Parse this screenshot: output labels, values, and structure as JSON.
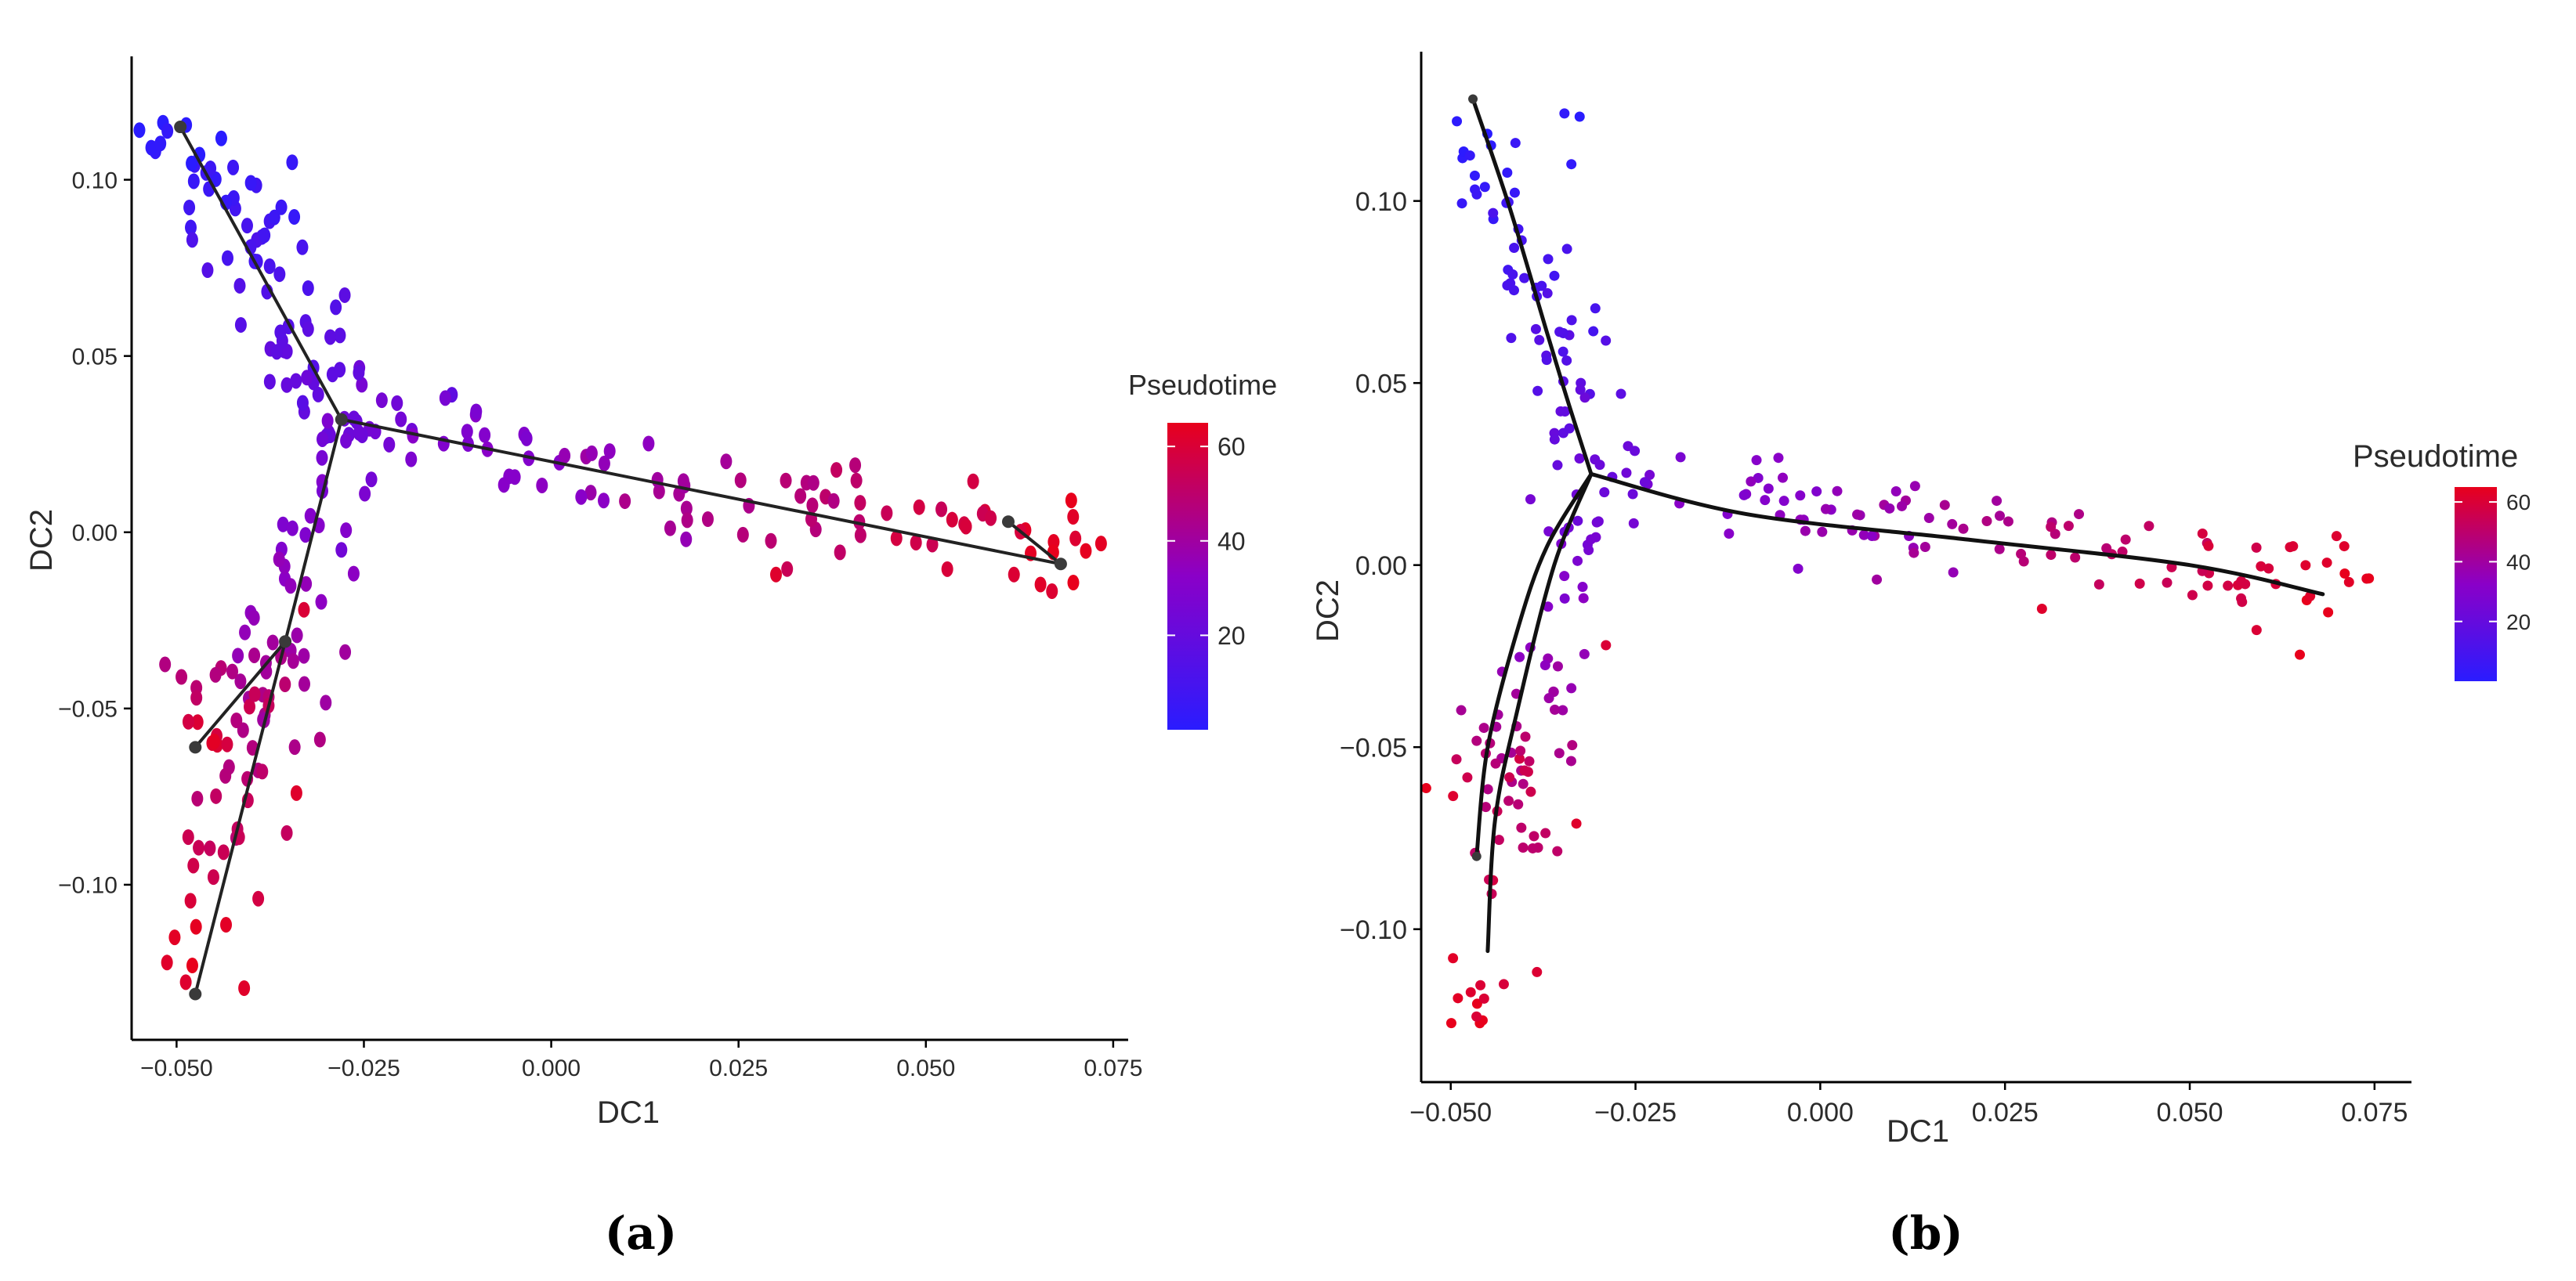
{
  "colors": {
    "low": "#2a1cff",
    "mid": "#8a00c8",
    "high": "#e8001c",
    "axis": "#000000",
    "tick_text": "#2b2b2b",
    "curve": "#222222",
    "node": "#3a3a3a"
  },
  "captions": [
    "(a)",
    "(b)"
  ],
  "chart_data": [
    {
      "type": "scatter",
      "panel": "a",
      "title": "",
      "xlabel": "DC1",
      "ylabel": "DC2",
      "xlim": [
        -0.056,
        0.077
      ],
      "ylim": [
        -0.144,
        0.135
      ],
      "xticks": [
        -0.05,
        -0.025,
        0.0,
        0.025,
        0.05,
        0.075
      ],
      "xtick_labels": [
        "−0.050",
        "−0.025",
        "0.000",
        "0.025",
        "0.050",
        "0.075"
      ],
      "yticks": [
        -0.1,
        -0.05,
        0.0,
        0.05,
        0.1
      ],
      "ytick_labels": [
        "−0.10",
        "−0.05",
        "0.00",
        "0.05",
        "0.10"
      ],
      "grid": false,
      "legend": {
        "title": "Pseudotime",
        "position": "right",
        "range": [
          0,
          65
        ],
        "ticks": [
          20,
          40,
          60
        ],
        "tick_labels": [
          "20",
          "40",
          "60"
        ]
      },
      "trajectory": {
        "style": "polyline",
        "nodes": [
          [
            -0.0495,
            0.115
          ],
          [
            -0.028,
            0.032
          ],
          [
            -0.0355,
            -0.031
          ],
          [
            -0.0475,
            -0.061
          ],
          [
            -0.0475,
            -0.131
          ],
          [
            0.068,
            -0.009
          ],
          [
            0.061,
            0.003
          ]
        ],
        "edges": [
          [
            [
              -0.0495,
              0.115
            ],
            [
              -0.028,
              0.032
            ]
          ],
          [
            [
              -0.028,
              0.032
            ],
            [
              0.068,
              -0.009
            ]
          ],
          [
            [
              0.061,
              0.003
            ],
            [
              0.068,
              -0.009
            ]
          ],
          [
            [
              -0.028,
              0.032
            ],
            [
              -0.0355,
              -0.031
            ]
          ],
          [
            [
              -0.0355,
              -0.031
            ],
            [
              -0.0475,
              -0.061
            ]
          ],
          [
            [
              -0.0355,
              -0.031
            ],
            [
              -0.0475,
              -0.131
            ]
          ]
        ]
      },
      "point_model": {
        "seed": 7,
        "note": "cells sampled along each branch of the trajectory; pseudotime increases away from the root at the top-left",
        "branches": [
          {
            "from": [
              -0.0495,
              0.118
            ],
            "to": [
              -0.028,
              0.033
            ],
            "pseudotime": [
              0,
              22
            ],
            "count": 75,
            "spread": 0.0042
          },
          {
            "from": [
              -0.028,
              0.033
            ],
            "to": [
              0.072,
              -0.009
            ],
            "pseudotime": [
              22,
              65
            ],
            "count": 95,
            "spread": 0.006
          },
          {
            "from": [
              -0.028,
              0.033
            ],
            "to": [
              -0.036,
              -0.03
            ],
            "pseudotime": [
              22,
              38
            ],
            "count": 30,
            "spread": 0.0035
          },
          {
            "from": [
              -0.036,
              -0.03
            ],
            "to": [
              -0.047,
              -0.129
            ],
            "pseudotime": [
              38,
              65
            ],
            "count": 45,
            "spread": 0.0035
          },
          {
            "from": [
              -0.036,
              -0.03
            ],
            "to": [
              -0.047,
              -0.06
            ],
            "pseudotime": [
              38,
              62
            ],
            "count": 25,
            "spread": 0.004
          }
        ],
        "extras": [
          {
            "x": -0.003,
            "y": 0.021,
            "t": 30
          },
          {
            "x": 0.004,
            "y": 0.01,
            "t": 32
          },
          {
            "x": 0.018,
            "y": -0.002,
            "t": 36
          },
          {
            "x": 0.035,
            "y": 0.014,
            "t": 45
          },
          {
            "x": 0.03,
            "y": -0.012,
            "t": 62
          },
          {
            "x": 0.007,
            "y": 0.009,
            "t": 33
          },
          {
            "x": -0.033,
            "y": -0.022,
            "t": 60
          },
          {
            "x": -0.034,
            "y": -0.074,
            "t": 62
          },
          {
            "x": -0.028,
            "y": -0.005,
            "t": 24
          },
          {
            "x": -0.024,
            "y": 0.015,
            "t": 25
          }
        ]
      }
    },
    {
      "type": "scatter",
      "panel": "b",
      "title": "",
      "xlabel": "DC1",
      "ylabel": "DC2",
      "xlim": [
        -0.054,
        0.08
      ],
      "ylim": [
        -0.142,
        0.141
      ],
      "xticks": [
        -0.05,
        -0.025,
        0.0,
        0.025,
        0.05,
        0.075
      ],
      "xtick_labels": [
        "−0.050",
        "−0.025",
        "0.000",
        "0.025",
        "0.050",
        "0.075"
      ],
      "yticks": [
        -0.1,
        -0.05,
        0.0,
        0.05,
        0.1
      ],
      "ytick_labels": [
        "−0.10",
        "−0.05",
        "0.00",
        "0.05",
        "0.10"
      ],
      "grid": false,
      "legend": {
        "title": "Pseudotime",
        "position": "right",
        "range": [
          0,
          65
        ],
        "ticks": [
          20,
          40,
          60
        ],
        "tick_labels": [
          "20",
          "40",
          "60"
        ]
      },
      "trajectory": {
        "style": "smooth",
        "curves": [
          [
            [
              -0.047,
              0.128
            ],
            [
              -0.042,
              0.098
            ],
            [
              -0.037,
              0.064
            ],
            [
              -0.034,
              0.044
            ],
            [
              -0.031,
              0.025
            ]
          ],
          [
            [
              -0.031,
              0.025
            ],
            [
              -0.01,
              0.014
            ],
            [
              0.02,
              0.007
            ],
            [
              0.05,
              0.0
            ],
            [
              0.068,
              -0.008
            ]
          ],
          [
            [
              -0.031,
              0.025
            ],
            [
              -0.036,
              0.0
            ],
            [
              -0.041,
              -0.04
            ],
            [
              -0.044,
              -0.07
            ],
            [
              -0.045,
              -0.106
            ]
          ],
          [
            [
              -0.031,
              0.025
            ],
            [
              -0.037,
              0.005
            ],
            [
              -0.041,
              -0.018
            ],
            [
              -0.045,
              -0.05
            ],
            [
              -0.0465,
              -0.08
            ]
          ]
        ],
        "end_nodes": [
          [
            -0.047,
            0.128
          ],
          [
            -0.0465,
            -0.08
          ]
        ]
      },
      "point_model": {
        "seed": 11,
        "note": "cells sampled along each branch of the trajectory; pseudotime increases away from the root at the top-left",
        "branches": [
          {
            "from": [
              -0.047,
              0.128
            ],
            "to": [
              -0.031,
              0.027
            ],
            "pseudotime": [
              0,
              22
            ],
            "count": 70,
            "spread": 0.0038
          },
          {
            "from": [
              -0.031,
              0.026
            ],
            "to": [
              0.073,
              -0.008
            ],
            "pseudotime": [
              22,
              65
            ],
            "count": 100,
            "spread": 0.0065
          },
          {
            "from": [
              -0.031,
              0.026
            ],
            "to": [
              -0.037,
              -0.03
            ],
            "pseudotime": [
              22,
              38
            ],
            "count": 30,
            "spread": 0.004
          },
          {
            "from": [
              -0.037,
              -0.03
            ],
            "to": [
              -0.046,
              -0.127
            ],
            "pseudotime": [
              38,
              65
            ],
            "count": 45,
            "spread": 0.0035
          },
          {
            "from": [
              -0.038,
              -0.035
            ],
            "to": [
              -0.047,
              -0.065
            ],
            "pseudotime": [
              38,
              62
            ],
            "count": 20,
            "spread": 0.004
          }
        ],
        "extras": [
          {
            "x": -0.007,
            "y": 0.021,
            "t": 30
          },
          {
            "x": 0.007,
            "y": 0.008,
            "t": 33
          },
          {
            "x": 0.018,
            "y": -0.002,
            "t": 36
          },
          {
            "x": 0.035,
            "y": 0.014,
            "t": 45
          },
          {
            "x": 0.03,
            "y": -0.012,
            "t": 62
          },
          {
            "x": -0.003,
            "y": -0.001,
            "t": 30
          },
          {
            "x": -0.033,
            "y": -0.071,
            "t": 62
          },
          {
            "x": -0.029,
            "y": -0.022,
            "t": 60
          },
          {
            "x": -0.03,
            "y": 0.012,
            "t": 24
          },
          {
            "x": 0.012,
            "y": 0.008,
            "t": 34
          }
        ]
      }
    }
  ]
}
